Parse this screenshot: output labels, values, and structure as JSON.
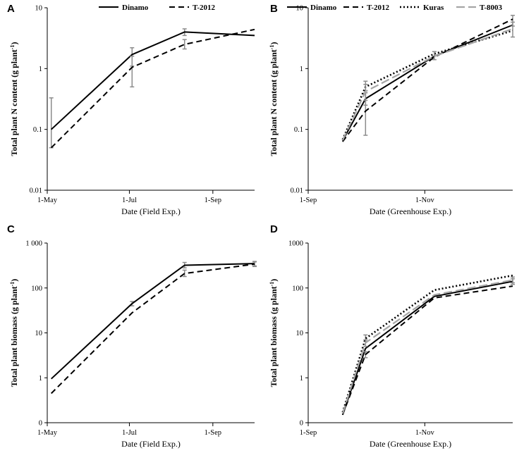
{
  "colors": {
    "dinamo": "#000000",
    "t2012": "#000000",
    "kuras": "#000000",
    "t8003": "#a6a6a6",
    "error_bar": "#8c8c8c",
    "axis": "#000000"
  },
  "chart_data": [
    {
      "panel": "A",
      "type": "line",
      "xlabel": "Date (Field Exp.)",
      "ylabel": "Total plant N content (g plant",
      "ylabel_sup": "-1",
      "ylabel_close": ")",
      "yscale": "log",
      "ylim": [
        0.01,
        10
      ],
      "y_ticks": [
        {
          "value": 0.01,
          "label": "0.01"
        },
        {
          "value": 0.1,
          "label": "0.1"
        },
        {
          "value": 1,
          "label": "1"
        },
        {
          "value": 10,
          "label": "10"
        }
      ],
      "xlim": [
        0,
        154
      ],
      "x_ticks": [
        {
          "value": 0,
          "label": "1-May"
        },
        {
          "value": 61,
          "label": "1-Jul"
        },
        {
          "value": 123,
          "label": "1-Sep"
        }
      ],
      "legend": [
        "Dinamo",
        "T-2012"
      ],
      "series": [
        {
          "name": "Dinamo",
          "key": "dinamo",
          "dash": "solid",
          "x": [
            3,
            63,
            102,
            154
          ],
          "y": [
            0.1,
            1.7,
            4.0,
            3.5
          ],
          "err": [
            [
              0.05,
              0.33
            ],
            [
              1.1,
              2.2
            ],
            [
              3.5,
              4.5
            ],
            null
          ]
        },
        {
          "name": "T-2012",
          "key": "t2012",
          "dash": "dash",
          "x": [
            3,
            63,
            102,
            154
          ],
          "y": [
            0.05,
            1.05,
            2.5,
            4.4
          ],
          "err": [
            null,
            [
              0.5,
              1.6
            ],
            [
              2.1,
              3.0
            ],
            null
          ]
        }
      ]
    },
    {
      "panel": "B",
      "type": "line",
      "xlabel": "Date (Greenhouse Exp.)",
      "ylabel": "Total plant N content (g plant",
      "ylabel_sup": "-1",
      "ylabel_close": ")",
      "yscale": "log",
      "ylim": [
        0.01,
        10
      ],
      "y_ticks": [
        {
          "value": 0.01,
          "label": "0.01"
        },
        {
          "value": 0.1,
          "label": "0.1"
        },
        {
          "value": 1,
          "label": "1"
        },
        {
          "value": 10,
          "label": "10"
        }
      ],
      "xlim": [
        0,
        107
      ],
      "x_ticks": [
        {
          "value": 0,
          "label": "1-Sep"
        },
        {
          "value": 61,
          "label": "1-Nov"
        }
      ],
      "legend": [
        "Dinamo",
        "T-2012",
        "Kuras",
        "T-8003"
      ],
      "series": [
        {
          "name": "Dinamo",
          "key": "dinamo",
          "dash": "solid",
          "x": [
            18,
            30,
            66,
            107
          ],
          "y": [
            0.065,
            0.32,
            1.6,
            5.2
          ],
          "err": [
            null,
            [
              0.25,
              0.4
            ],
            null,
            null
          ]
        },
        {
          "name": "T-2012",
          "key": "t2012",
          "dash": "dash",
          "x": [
            18,
            30,
            66,
            107
          ],
          "y": [
            0.063,
            0.2,
            1.55,
            6.5
          ],
          "err": [
            null,
            [
              0.08,
              0.55
            ],
            null,
            [
              5.0,
              7.5
            ]
          ]
        },
        {
          "name": "Kuras",
          "key": "kuras",
          "dash": "dot",
          "x": [
            18,
            30,
            66,
            107
          ],
          "y": [
            0.068,
            0.5,
            1.75,
            4.2
          ],
          "err": [
            null,
            null,
            null,
            null
          ]
        },
        {
          "name": "T-8003",
          "key": "t8003",
          "dash": "longdash",
          "x": [
            18,
            30,
            66,
            107
          ],
          "y": [
            0.066,
            0.42,
            1.6,
            4.5
          ],
          "err": [
            null,
            [
              0.3,
              0.62
            ],
            [
              1.4,
              1.9
            ],
            [
              3.3,
              5.8
            ]
          ]
        }
      ]
    },
    {
      "panel": "C",
      "type": "line",
      "xlabel": "Date (Field Exp.)",
      "ylabel": "Total plant biomass (g plant",
      "ylabel_sup": "-1",
      "ylabel_close": ")",
      "yscale": "log",
      "ylim": [
        0.1,
        1000
      ],
      "y_ticks": [
        {
          "value": 0.1,
          "label": "0"
        },
        {
          "value": 1,
          "label": "1"
        },
        {
          "value": 10,
          "label": "10"
        },
        {
          "value": 100,
          "label": "100"
        },
        {
          "value": 1000,
          "label": "1 000"
        }
      ],
      "xlim": [
        0,
        154
      ],
      "x_ticks": [
        {
          "value": 0,
          "label": "1-May"
        },
        {
          "value": 61,
          "label": "1-Jul"
        },
        {
          "value": 123,
          "label": "1-Sep"
        }
      ],
      "legend": [],
      "series": [
        {
          "name": "Dinamo",
          "key": "dinamo",
          "dash": "solid",
          "x": [
            3,
            63,
            102,
            154
          ],
          "y": [
            0.95,
            45,
            320,
            350
          ],
          "err": [
            null,
            [
              40,
              50
            ],
            [
              280,
              370
            ],
            [
              310,
              390
            ]
          ]
        },
        {
          "name": "T-2012",
          "key": "t2012",
          "dash": "dash",
          "x": [
            3,
            63,
            102,
            154
          ],
          "y": [
            0.45,
            28,
            210,
            340
          ],
          "err": [
            null,
            null,
            [
              180,
              250
            ],
            [
              300,
              380
            ]
          ]
        }
      ]
    },
    {
      "panel": "D",
      "type": "line",
      "xlabel": "Date (Greenhouse Exp.)",
      "ylabel": "Total plant biomass (g plant",
      "ylabel_sup": "-1",
      "ylabel_close": ")",
      "yscale": "log",
      "ylim": [
        0.1,
        1000
      ],
      "y_ticks": [
        {
          "value": 0.1,
          "label": "0"
        },
        {
          "value": 1,
          "label": "1"
        },
        {
          "value": 10,
          "label": "10"
        },
        {
          "value": 100,
          "label": "100"
        },
        {
          "value": 1000,
          "label": "1000"
        }
      ],
      "xlim": [
        0,
        107
      ],
      "x_ticks": [
        {
          "value": 0,
          "label": "1-Sep"
        },
        {
          "value": 61,
          "label": "1-Nov"
        }
      ],
      "legend": [],
      "series": [
        {
          "name": "Dinamo",
          "key": "dinamo",
          "dash": "solid",
          "x": [
            18,
            30,
            66,
            107
          ],
          "y": [
            0.15,
            4.5,
            65,
            140
          ],
          "err": [
            null,
            null,
            null,
            [
              120,
              160
            ]
          ]
        },
        {
          "name": "T-2012",
          "key": "t2012",
          "dash": "dash",
          "x": [
            18,
            30,
            66,
            107
          ],
          "y": [
            0.15,
            3.3,
            60,
            110
          ],
          "err": [
            null,
            [
              2.8,
              3.8
            ],
            null,
            null
          ]
        },
        {
          "name": "Kuras",
          "key": "kuras",
          "dash": "dot",
          "x": [
            18,
            30,
            66,
            107
          ],
          "y": [
            0.17,
            7.5,
            90,
            190
          ],
          "err": [
            null,
            [
              6.5,
              9.0
            ],
            null,
            null
          ]
        },
        {
          "name": "T-8003",
          "key": "t8003",
          "dash": "longdash",
          "x": [
            18,
            30,
            66,
            107
          ],
          "y": [
            0.16,
            6.0,
            70,
            150
          ],
          "err": [
            null,
            [
              5,
              7
            ],
            null,
            [
              130,
              175
            ]
          ]
        }
      ]
    }
  ]
}
